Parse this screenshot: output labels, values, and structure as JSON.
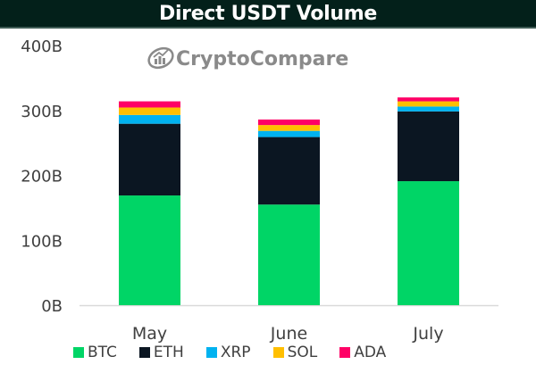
{
  "chart_data": {
    "type": "bar",
    "stacked": true,
    "title": "Direct USDT Volume",
    "watermark": "CryptoCompare",
    "xlabel": "",
    "ylabel": "",
    "categories": [
      "May",
      "June",
      "July"
    ],
    "ylim": [
      0,
      400
    ],
    "yticks": [
      0,
      100,
      200,
      300,
      400
    ],
    "ytick_labels": [
      "0B",
      "100B",
      "200B",
      "300B",
      "400B"
    ],
    "grid": false,
    "legend_position": "bottom",
    "series": [
      {
        "name": "BTC",
        "color": "#00d566",
        "values": [
          169,
          155,
          191
        ]
      },
      {
        "name": "ETH",
        "color": "#0b1622",
        "values": [
          110.5,
          104,
          107.5
        ]
      },
      {
        "name": "XRP",
        "color": "#00b2f0",
        "values": [
          13.5,
          9.5,
          7.5
        ]
      },
      {
        "name": "SOL",
        "color": "#ffbf00",
        "values": [
          11.5,
          9,
          8
        ]
      },
      {
        "name": "ADA",
        "color": "#ff0066",
        "values": [
          9.5,
          8.5,
          6
        ]
      }
    ]
  }
}
